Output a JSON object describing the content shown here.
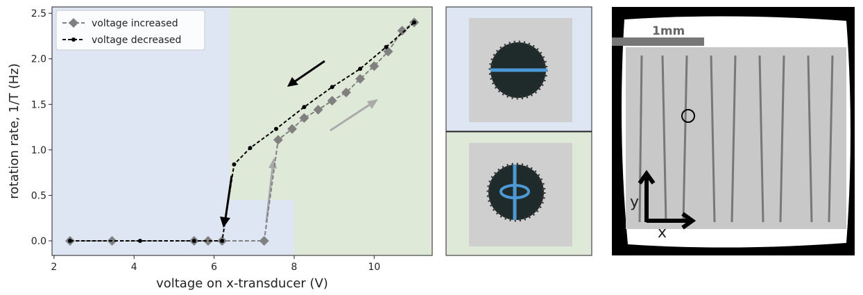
{
  "chart_data": {
    "type": "line",
    "x_label": "voltage on x-transducer (V)",
    "y_label": "rotation rate, 1/T (Hz)",
    "xlim": [
      1.95,
      11.45
    ],
    "xticks": [
      2,
      4,
      6,
      8,
      10
    ],
    "ylim": [
      -0.16,
      2.57
    ],
    "yticks": [
      {
        "value": 0,
        "label": "0.0"
      },
      0.5,
      {
        "value": 1,
        "label": "1.0"
      },
      1.5,
      {
        "value": 2,
        "label": "2.0"
      },
      2.5
    ],
    "legend": "upper left",
    "series": [
      {
        "name": "voltage increased",
        "color": "#808080",
        "marker": "diamond",
        "x": [
          2.4,
          3.45,
          5.5,
          5.85,
          6.2,
          7.25,
          7.6,
          7.95,
          8.25,
          8.6,
          8.95,
          9.3,
          9.65,
          10.0,
          10.35,
          10.7,
          11.0
        ],
        "values": [
          0,
          0,
          0,
          0,
          0,
          0,
          1.11,
          1.23,
          1.35,
          1.44,
          1.54,
          1.63,
          1.78,
          1.92,
          2.08,
          2.31,
          2.4
        ]
      },
      {
        "name": "voltage decreased",
        "color": "#000000",
        "marker": "dot",
        "x": [
          2.4,
          4.15,
          5.5,
          6.2,
          6.5,
          6.9,
          7.55,
          8.25,
          8.95,
          9.65,
          10.3,
          11.0
        ],
        "values": [
          0,
          0,
          0,
          0,
          0.84,
          1.02,
          1.23,
          1.47,
          1.69,
          1.89,
          2.13,
          2.4
        ]
      }
    ]
  },
  "micrograph": {
    "scale_bar": "1mm",
    "x_axis": "x",
    "y_axis": "y"
  }
}
